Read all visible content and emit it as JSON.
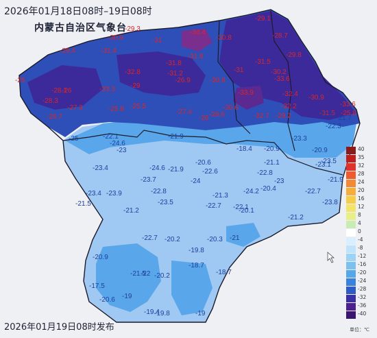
{
  "title": "2026年01月18日08时–19日08时",
  "organization": "内蒙古自治区气象台",
  "footer": "2026年01月19日08时发布",
  "legend": {
    "unit": "单位：℃",
    "labels": [
      "40",
      "35",
      "32",
      "28",
      "24",
      "20",
      "16",
      "12",
      "8",
      "4",
      "0",
      "-4",
      "-8",
      "-12",
      "-16",
      "-20",
      "-24",
      "-28",
      "-32",
      "-36",
      "-40"
    ],
    "colors": [
      "#8b1a1a",
      "#c01d1d",
      "#e2302a",
      "#ee5b2f",
      "#f18a36",
      "#f5ae3c",
      "#f6cd4b",
      "#f3e36a",
      "#e6ef8a",
      "#c9ecb5",
      "#ffffff",
      "#d9efff",
      "#bfe3fa",
      "#9fd3f4",
      "#7cc0ef",
      "#56a8e9",
      "#3b82dc",
      "#2e5bc6",
      "#3b2fa8",
      "#4d1f8f",
      "#3a1670"
    ]
  },
  "colors": {
    "cold_deep": "#3d2a9a",
    "cold_mid": "#2f4fb8",
    "cold_light": "#5aa6ea",
    "cold_pale": "#9fc9f2",
    "value_red": "#d9262a",
    "value_blue": "#1d3f9e"
  },
  "stations_red": [
    "-29.1",
    "-28.7",
    "-29.3",
    "-34.4",
    "-30.9",
    "-31",
    "-30.8",
    "-31.6",
    "-29.4",
    "-31.4",
    "-29.8",
    "-31",
    "-31.5",
    "-30.2",
    "-33.6",
    "-31.8",
    "-32.8",
    "-31.2",
    "-26.9",
    "-30.8",
    "-25",
    "-28.1",
    "-26",
    "-33.3",
    "-29",
    "-33.9",
    "-32.4",
    "-30.9",
    "-28.3",
    "-27.3",
    "-30.6",
    "-32.2",
    "-33.6",
    "-26.7",
    "-25.8",
    "-25.5",
    "-27.4",
    "-26",
    "-28.6",
    "-32.7",
    "-29.2",
    "-31.5",
    "-25.8"
  ],
  "stations_blue": [
    "-22.9",
    "-22.3",
    "-21.7",
    "-25",
    "-22.1",
    "-24.6",
    "-23",
    "-21.9",
    "-18.4",
    "-20.9",
    "-23.3",
    "-20.9",
    "-23.5",
    "-20.6",
    "-21.1",
    "-23.1",
    "-23.4",
    "-24.6",
    "-21.9",
    "-22.6",
    "-22.8",
    "-21.9",
    "-23",
    "-23.7",
    "-24",
    "-20.4",
    "-22.7",
    "-23.4",
    "-23.9",
    "-22.8",
    "-21.3",
    "-24.2",
    "-23.8",
    "-21.5",
    "-23.5",
    "-22.7",
    "-22.1",
    "-21.2",
    "-20.1",
    "-21.2",
    "-22.7",
    "-20.2",
    "-20.3",
    "-21",
    "-19.8",
    "-20.9",
    "-18.7",
    "-18.7",
    "-21.5",
    "-22",
    "-20.2",
    "-17.5",
    "-20.6",
    "-19",
    "-19.8",
    "-19.4",
    "-19"
  ]
}
